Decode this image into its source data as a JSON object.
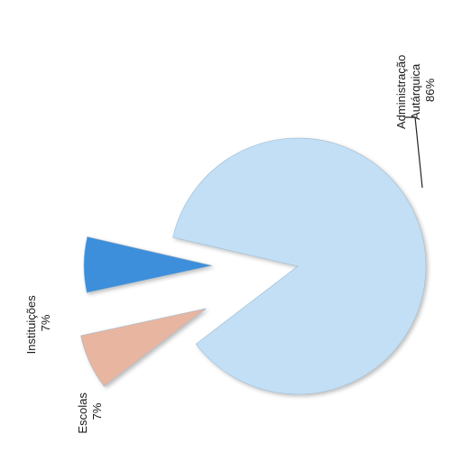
{
  "chart_data": {
    "type": "pie",
    "title": "",
    "slices": [
      {
        "name": "Administração Autárquica",
        "value": 86,
        "label": "86%",
        "color": "#c2dff5"
      },
      {
        "name": "Instituições",
        "value": 7,
        "label": "7%",
        "color": "#e8b5a0"
      },
      {
        "name": "Escolas",
        "value": 7,
        "label": "7%",
        "color": "#3d8fdc"
      }
    ],
    "label_lines": {
      "admin": [
        "Administração",
        "Autárquica",
        "86%"
      ],
      "inst": [
        "Instituições",
        "7%"
      ],
      "esc": [
        "Escolas",
        "7%"
      ]
    },
    "exploded": true,
    "legend": "none"
  }
}
